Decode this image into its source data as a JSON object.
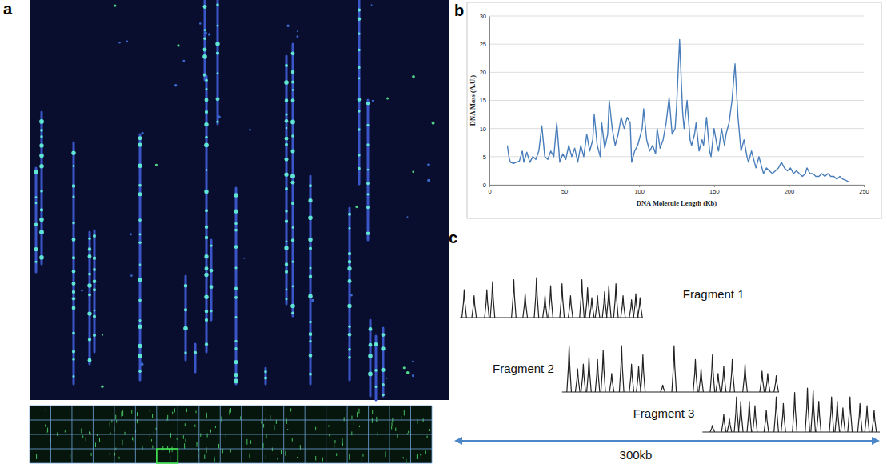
{
  "image_panel": {
    "label": "a"
  },
  "chart_data": [
    {
      "label": "b",
      "type": "line",
      "x_label": "DNA Molecule Length (Kb)",
      "y_label": "DNA Mass (A.U.)",
      "xlim": [
        0,
        250
      ],
      "xticks": [
        0,
        50,
        100,
        150,
        200,
        250
      ],
      "ylim": [
        0,
        30
      ],
      "yticks": [
        0,
        5,
        10,
        15,
        20,
        25,
        30
      ],
      "grid": true,
      "x": [
        12,
        13,
        14,
        16,
        18,
        20,
        22,
        23,
        25,
        27,
        29,
        31,
        33,
        35,
        37,
        39,
        41,
        43,
        45,
        47,
        49,
        51,
        53,
        55,
        57,
        59,
        61,
        63,
        65,
        67,
        69,
        70,
        72,
        74,
        75,
        77,
        79,
        80,
        82,
        84,
        86,
        88,
        90,
        92,
        94,
        95,
        97,
        99,
        100,
        102,
        103,
        105,
        107,
        109,
        111,
        112,
        114,
        116,
        118,
        120,
        122,
        124,
        125,
        127,
        129,
        130,
        132,
        134,
        135,
        137,
        138,
        140,
        142,
        143,
        145,
        147,
        148,
        150,
        152,
        153,
        155,
        157,
        158,
        160,
        162,
        164,
        166,
        168,
        170,
        172,
        173,
        175,
        177,
        178,
        180,
        182,
        183,
        185,
        187,
        189,
        191,
        193,
        195,
        197,
        199,
        201,
        203,
        205,
        207,
        209,
        211,
        212,
        214,
        216,
        218,
        220,
        222,
        224,
        226,
        228,
        230,
        232,
        234,
        236,
        238,
        240
      ],
      "series": [
        {
          "color": "#4a7ebb",
          "values": [
            7,
            5,
            4,
            3.8,
            4,
            4.2,
            6,
            4,
            5.8,
            4,
            5,
            4.5,
            6,
            10.5,
            5,
            4.5,
            6,
            5,
            11,
            4,
            5.5,
            4.5,
            7,
            5,
            6.5,
            4,
            7,
            5,
            9,
            6,
            8,
            12.5,
            7,
            5,
            11,
            6.5,
            9,
            15,
            10,
            7,
            9,
            12,
            10,
            12,
            11,
            4,
            6,
            7,
            8,
            10,
            13.5,
            8,
            6,
            7,
            5.5,
            10,
            6.5,
            8,
            11,
            15.5,
            9,
            10,
            14,
            25.8,
            13,
            10,
            15,
            8,
            7,
            9,
            11,
            6,
            8,
            7,
            12,
            6,
            5,
            10,
            7,
            6,
            10,
            7,
            9,
            11,
            15,
            21.5,
            12,
            6,
            8,
            5,
            4,
            6,
            4,
            3,
            5,
            3,
            2,
            3,
            2.5,
            2,
            2.5,
            3,
            4,
            3,
            2.5,
            3,
            2,
            2.5,
            2,
            1.5,
            2,
            3,
            2,
            2,
            1.5,
            1.5,
            2,
            1.5,
            2,
            1.5,
            1.5,
            1,
            1.5,
            1,
            0.8,
            0.5
          ]
        }
      ]
    },
    {
      "label": "c",
      "type": "profile",
      "annotation": "300kb",
      "xlim": [
        0,
        300
      ],
      "ylim": [
        0,
        1
      ],
      "tick_labels": false,
      "color": "#222222",
      "fragments": [
        {
          "name": "Fragment 1",
          "start": 4,
          "end": 133,
          "positions": [
            7,
            14,
            23,
            27,
            42,
            50,
            58,
            64,
            68,
            76,
            82,
            90,
            94,
            97,
            101,
            106,
            109,
            114,
            119,
            125,
            128,
            131
          ],
          "heights": [
            0.7,
            0.55,
            0.7,
            0.9,
            0.95,
            0.6,
            1.0,
            0.55,
            0.8,
            0.85,
            0.55,
            0.95,
            0.75,
            0.5,
            0.55,
            0.65,
            0.8,
            0.85,
            0.55,
            0.45,
            0.6,
            0.5
          ]
        },
        {
          "name": "Fragment 2",
          "start": 76,
          "end": 229,
          "positions": [
            81,
            87,
            91,
            95,
            101,
            105,
            111,
            118,
            125,
            130,
            133,
            147,
            155,
            170,
            174,
            182,
            186,
            190,
            196,
            205,
            217,
            221,
            227
          ],
          "heights": [
            1.0,
            0.5,
            0.6,
            0.75,
            0.7,
            0.9,
            0.4,
            1.0,
            0.6,
            0.55,
            0.8,
            0.15,
            1.0,
            0.7,
            0.5,
            0.8,
            0.4,
            0.55,
            0.7,
            0.6,
            0.45,
            0.4,
            0.35
          ]
        },
        {
          "name": "Fragment 3",
          "start": 175,
          "end": 300,
          "positions": [
            182,
            190,
            194,
            199,
            202,
            208,
            212,
            220,
            227,
            232,
            240,
            249,
            253,
            257,
            266,
            270,
            274,
            279,
            286,
            291,
            296
          ],
          "heights": [
            0.15,
            0.4,
            0.3,
            0.8,
            0.7,
            0.7,
            0.6,
            0.5,
            0.8,
            0.65,
            0.9,
            1.0,
            0.95,
            0.7,
            0.8,
            0.7,
            0.55,
            0.8,
            0.65,
            0.6,
            0.5
          ]
        }
      ]
    }
  ]
}
